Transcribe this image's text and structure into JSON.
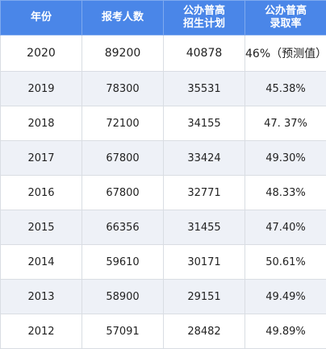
{
  "header": {
    "year": "年份",
    "applicants": "报考人数",
    "plan_line1": "公办普高",
    "plan_line2": "招生计划",
    "rate_line1": "公办普高",
    "rate_line2": "录取率"
  },
  "rows": [
    {
      "year": "2020",
      "applicants": "89200",
      "plan": "40878",
      "rate": "46%（预测值）"
    },
    {
      "year": "2019",
      "applicants": "78300",
      "plan": "35531",
      "rate": "45.38%"
    },
    {
      "year": "2018",
      "applicants": "72100",
      "plan": "34155",
      "rate": "47. 37%"
    },
    {
      "year": "2017",
      "applicants": "67800",
      "plan": "33424",
      "rate": "49.30%"
    },
    {
      "year": "2016",
      "applicants": "67800",
      "plan": "32771",
      "rate": "48.33%"
    },
    {
      "year": "2015",
      "applicants": "66356",
      "plan": "31455",
      "rate": "47.40%"
    },
    {
      "year": "2014",
      "applicants": "59610",
      "plan": "30171",
      "rate": "50.61%"
    },
    {
      "year": "2013",
      "applicants": "58900",
      "plan": "29151",
      "rate": "49.49%"
    },
    {
      "year": "2012",
      "applicants": "57091",
      "plan": "28482",
      "rate": "49.89%"
    }
  ]
}
